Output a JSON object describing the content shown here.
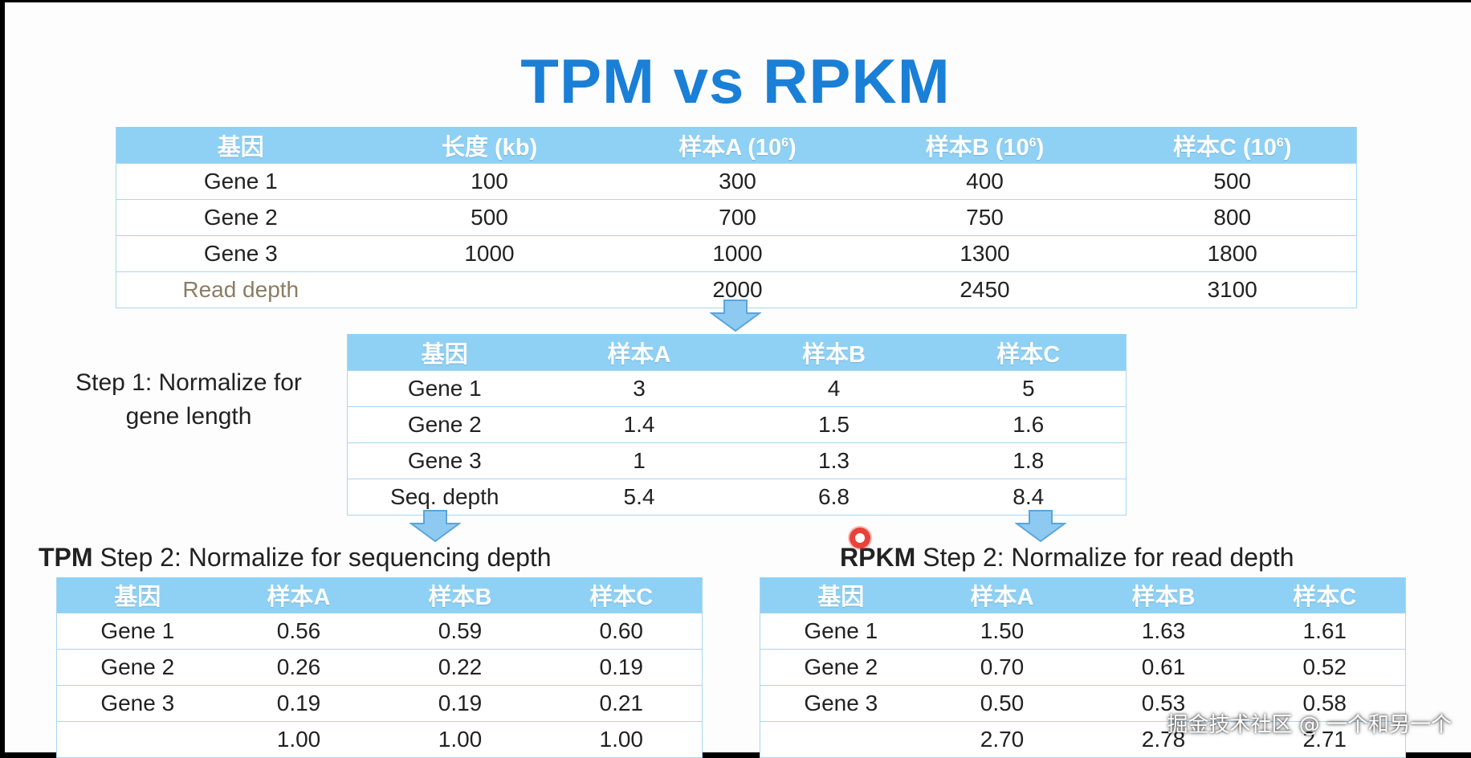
{
  "title": "TPM vs RPKM",
  "main_table": {
    "headers": [
      "基因",
      "长度 (kb)",
      "样本A (10",
      "样本B (10",
      "样本C (10"
    ],
    "header_exponent": "6",
    "header_close": ")",
    "rows": [
      [
        "Gene 1",
        "100",
        "300",
        "400",
        "500"
      ],
      [
        "Gene 2",
        "500",
        "700",
        "750",
        "800"
      ],
      [
        "Gene 3",
        "1000",
        "1000",
        "1300",
        "1800"
      ],
      [
        "Read depth",
        "",
        "2000",
        "2450",
        "3100"
      ]
    ]
  },
  "step1": {
    "label_line1": "Step 1: Normalize for",
    "label_line2": "gene length",
    "headers": [
      "基因",
      "样本A",
      "样本B",
      "样本C"
    ],
    "rows": [
      [
        "Gene 1",
        "3",
        "4",
        "5"
      ],
      [
        "Gene 2",
        "1.4",
        "1.5",
        "1.6"
      ],
      [
        "Gene 3",
        "1",
        "1.3",
        "1.8"
      ],
      [
        "Seq. depth",
        "5.4",
        "6.8",
        "8.4"
      ]
    ]
  },
  "tpm": {
    "heading_bold": "TPM",
    "heading_rest": " Step 2: Normalize for sequencing depth",
    "headers": [
      "基因",
      "样本A",
      "样本B",
      "样本C"
    ],
    "rows": [
      [
        "Gene 1",
        "0.56",
        "0.59",
        "0.60"
      ],
      [
        "Gene 2",
        "0.26",
        "0.22",
        "0.19"
      ],
      [
        "Gene 3",
        "0.19",
        "0.19",
        "0.21"
      ],
      [
        "",
        "1.00",
        "1.00",
        "1.00"
      ]
    ]
  },
  "rpkm": {
    "heading_bold": "RPKM",
    "heading_rest": " Step 2: Normalize for read depth",
    "headers": [
      "基因",
      "样本A",
      "样本B",
      "样本C"
    ],
    "rows": [
      [
        "Gene 1",
        "1.50",
        "1.63",
        "1.61"
      ],
      [
        "Gene 2",
        "0.70",
        "0.61",
        "0.52"
      ],
      [
        "Gene 3",
        "0.50",
        "0.53",
        "0.58"
      ],
      [
        "",
        "2.70",
        "2.78",
        "2.71"
      ]
    ]
  },
  "watermark": "掘金技术社区 @ 一个和另一个",
  "colors": {
    "title": "#1a7fd6",
    "header_fill": "#8fd1f5",
    "arrow_fill": "#8ec9f2",
    "arrow_stroke": "#5aa5dc",
    "cursor_dot": "#e8423a"
  }
}
